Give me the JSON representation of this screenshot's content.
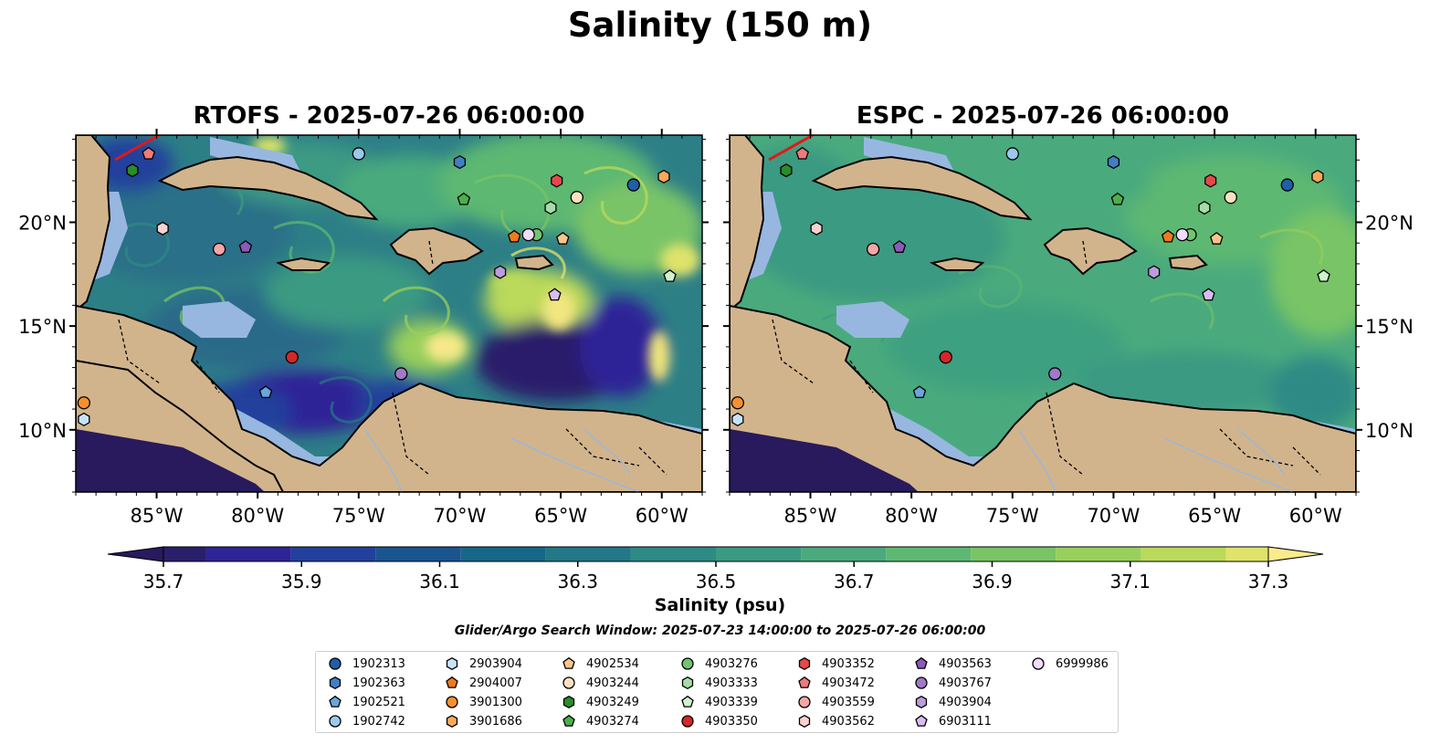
{
  "title": "Salinity (150 m)",
  "panels": [
    {
      "id": "rtofs",
      "title": "RTOFS - 2025-07-26 06:00:00"
    },
    {
      "id": "espc",
      "title": "ESPC - 2025-07-26 06:00:00"
    }
  ],
  "colorbar": {
    "label": "Salinity (psu)",
    "ticks": [
      "35.7",
      "35.9",
      "36.1",
      "36.3",
      "36.5",
      "36.7",
      "36.9",
      "37.1",
      "37.3"
    ],
    "min": 35.7,
    "max": 37.3,
    "step": 0.1,
    "colors": [
      "#2a1f6a",
      "#2e2497",
      "#22409c",
      "#1a5590",
      "#176789",
      "#247786",
      "#2d8a85",
      "#3a9a82",
      "#4aaa7d",
      "#5db872",
      "#78c466",
      "#99cf5c",
      "#bbd95a",
      "#dfe36a"
    ],
    "under_color": "#281a5c",
    "over_color": "#fbeb8c"
  },
  "search_window": "Glider/Argo Search Window: 2025-07-23 14:00:00 to 2025-07-26 06:00:00",
  "chart_data": {
    "type": "map",
    "projection": "PlateCarree",
    "lon_range": [
      -89,
      -58
    ],
    "lat_range": [
      7,
      24.2
    ],
    "x_ticks": [
      -85,
      -80,
      -75,
      -70,
      -65,
      -60
    ],
    "x_tick_labels": [
      "85°W",
      "80°W",
      "75°W",
      "70°W",
      "65°W",
      "60°W"
    ],
    "y_ticks": [
      10,
      15,
      20
    ],
    "y_tick_labels": [
      "10°N",
      "15°N",
      "20°N"
    ],
    "floats": [
      {
        "id": "1902313",
        "marker": "circle",
        "color": "#1f5fa8",
        "lon": -61.4,
        "lat": 21.8
      },
      {
        "id": "1902363",
        "marker": "hexagon",
        "color": "#3f80c4",
        "lon": -70.0,
        "lat": 22.9
      },
      {
        "id": "1902521",
        "marker": "pentagon",
        "color": "#6aa6dc",
        "lon": -79.6,
        "lat": 11.8
      },
      {
        "id": "1902742",
        "marker": "circle",
        "color": "#9dc8ec",
        "lon": -75.0,
        "lat": 23.3
      },
      {
        "id": "2903904",
        "marker": "hexagon",
        "color": "#c7e4f6",
        "lon": -88.6,
        "lat": 10.5
      },
      {
        "id": "2904007",
        "marker": "pentagon",
        "color": "#f07a1c",
        "lon": -67.3,
        "lat": 19.3
      },
      {
        "id": "3901300",
        "marker": "circle",
        "color": "#f5902e",
        "lon": -88.6,
        "lat": 11.3
      },
      {
        "id": "3901686",
        "marker": "hexagon",
        "color": "#f9a85a",
        "lon": -59.9,
        "lat": 22.2
      },
      {
        "id": "4902534",
        "marker": "pentagon",
        "color": "#fbc58b",
        "lon": -64.9,
        "lat": 19.2
      },
      {
        "id": "4903244",
        "marker": "circle",
        "color": "#fde2c2",
        "lon": -64.2,
        "lat": 21.2
      },
      {
        "id": "4903249",
        "marker": "hexagon",
        "color": "#2a8c2a",
        "lon": -86.2,
        "lat": 22.5
      },
      {
        "id": "4903274",
        "marker": "pentagon",
        "color": "#4caf4c",
        "lon": -69.8,
        "lat": 21.1
      },
      {
        "id": "4903276",
        "marker": "circle",
        "color": "#72c472",
        "lon": -66.2,
        "lat": 19.4
      },
      {
        "id": "4903333",
        "marker": "hexagon",
        "color": "#a6dca6",
        "lon": -65.5,
        "lat": 20.7
      },
      {
        "id": "4903339",
        "marker": "pentagon",
        "color": "#cff3cf",
        "lon": -59.6,
        "lat": 17.4
      },
      {
        "id": "4903350",
        "marker": "circle",
        "color": "#d62728",
        "lon": -78.3,
        "lat": 13.5
      },
      {
        "id": "4903352",
        "marker": "hexagon",
        "color": "#e5484a",
        "lon": -65.2,
        "lat": 22.0
      },
      {
        "id": "4903472",
        "marker": "pentagon",
        "color": "#ee7a7c",
        "lon": -85.4,
        "lat": 23.3
      },
      {
        "id": "4903559",
        "marker": "circle",
        "color": "#f4a6a6",
        "lon": -81.9,
        "lat": 18.7
      },
      {
        "id": "4903562",
        "marker": "hexagon",
        "color": "#fad2d0",
        "lon": -84.7,
        "lat": 19.7
      },
      {
        "id": "4903563",
        "marker": "pentagon",
        "color": "#8a5cb8",
        "lon": -80.6,
        "lat": 18.8
      },
      {
        "id": "4903767",
        "marker": "circle",
        "color": "#a07ac8",
        "lon": -72.9,
        "lat": 12.7
      },
      {
        "id": "4903904",
        "marker": "hexagon",
        "color": "#bc9cdc",
        "lon": -68.0,
        "lat": 17.6
      },
      {
        "id": "6903111",
        "marker": "pentagon",
        "color": "#d8bdf0",
        "lon": -65.3,
        "lat": 16.5
      },
      {
        "id": "6999986",
        "marker": "circle",
        "color": "#f0dcff",
        "lon": -66.6,
        "lat": 19.4
      }
    ]
  }
}
